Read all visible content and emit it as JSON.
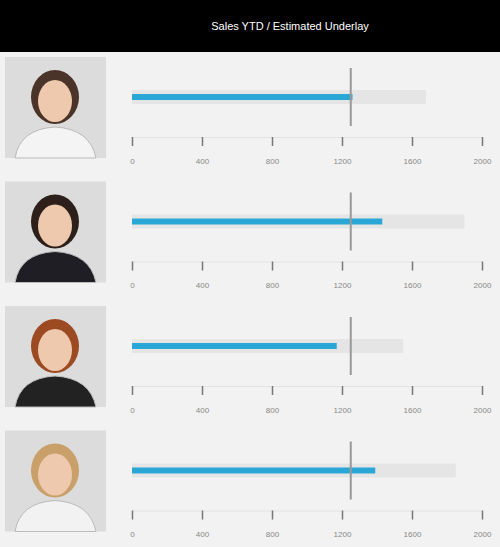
{
  "chart_data": {
    "type": "bullet",
    "title": "Sales YTD / Estimated Underlay",
    "orientation": "horizontal",
    "color": "#2aa7d6",
    "xlim": [
      0,
      2000
    ],
    "xticks": [
      0,
      400,
      800,
      1200,
      1600,
      2000
    ],
    "values": [
      1260,
      1430,
      1170,
      1390
    ],
    "targets": [
      1250,
      1250,
      1250,
      1250
    ],
    "ranges": [
      1680,
      1900,
      1550,
      1850
    ]
  }
}
